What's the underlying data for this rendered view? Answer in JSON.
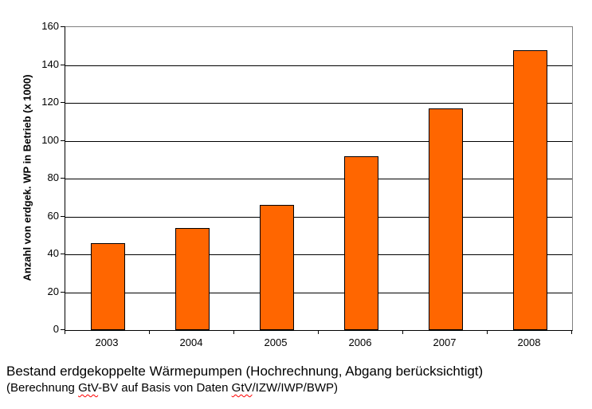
{
  "chart_data": {
    "type": "bar",
    "title": "",
    "categories": [
      "2003",
      "2004",
      "2005",
      "2006",
      "2007",
      "2008"
    ],
    "values": [
      46,
      54,
      66,
      92,
      117,
      148
    ],
    "xlabel": "",
    "ylabel": "Anzahl von erdgek. WP in Betrieb (x 1000)",
    "ylim": [
      0,
      160
    ],
    "yticks": [
      0,
      20,
      40,
      60,
      80,
      100,
      120,
      140,
      160
    ],
    "grid": true,
    "legend": "none",
    "bar_color": "#FF6600",
    "bar_border_color": "#000000",
    "gridline_color": "#000000",
    "plot_border_color": "#808080",
    "background_color": "#FFFFFF"
  },
  "caption": {
    "line1": "Bestand erdgekoppelte Wärmepumpen (Hochrechnung, Abgang berücksichtigt)",
    "line2_parts": [
      {
        "text": "(Berechnung ",
        "misspelled": false
      },
      {
        "text": "GtV",
        "misspelled": true
      },
      {
        "text": "-BV auf Basis von Daten ",
        "misspelled": false
      },
      {
        "text": "GtV",
        "misspelled": true
      },
      {
        "text": "/IZW/IWP/BWP)",
        "misspelled": false
      }
    ],
    "spellcheck_color": "#FF0000"
  }
}
